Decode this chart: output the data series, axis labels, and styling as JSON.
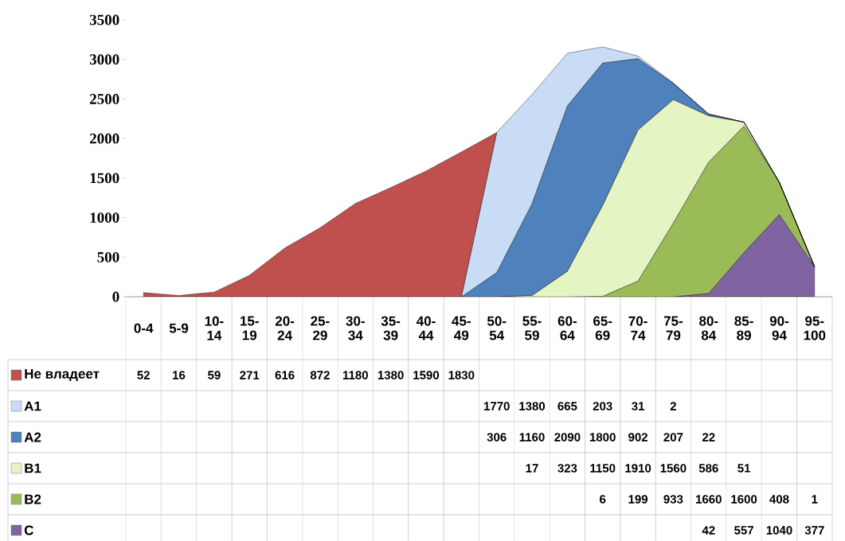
{
  "chart_data": {
    "type": "area",
    "stacked": true,
    "legend": "bottom",
    "categories": [
      "0-4",
      "5-9",
      "10-14",
      "15-19",
      "20-24",
      "25-29",
      "30-34",
      "35-39",
      "40-44",
      "45-49",
      "50-54",
      "55-59",
      "60-64",
      "65-69",
      "70-74",
      "75-79",
      "80-84",
      "85-89",
      "90-94",
      "95-100"
    ],
    "ylim": [
      0,
      3500
    ],
    "yticks": [
      0,
      500,
      1000,
      1500,
      2000,
      2500,
      3000,
      3500
    ],
    "series": [
      {
        "name": "C",
        "color": "#8064a2",
        "values": [
          0,
          0,
          0,
          0,
          0,
          0,
          0,
          0,
          0,
          0,
          0,
          0,
          0,
          0,
          0,
          0,
          42,
          557,
          1040,
          377
        ],
        "value_labels": [
          null,
          null,
          null,
          null,
          null,
          null,
          null,
          null,
          null,
          null,
          null,
          null,
          null,
          null,
          null,
          null,
          "42",
          "557",
          "1040",
          "377"
        ]
      },
      {
        "name": "B2",
        "color": "#9bbb59",
        "values": [
          0,
          0,
          0,
          0,
          0,
          0,
          0,
          0,
          0,
          0,
          0,
          0,
          0,
          6,
          199,
          933,
          1660,
          1600,
          408,
          1
        ],
        "value_labels": [
          null,
          null,
          null,
          null,
          null,
          null,
          null,
          null,
          null,
          null,
          null,
          null,
          null,
          "6",
          "199",
          "933",
          "1660",
          "1600",
          "408",
          "1"
        ]
      },
      {
        "name": "B1",
        "color": "#e4f4c2",
        "values": [
          0,
          0,
          0,
          0,
          0,
          0,
          0,
          0,
          0,
          0,
          0,
          17,
          323,
          1150,
          1910,
          1560,
          586,
          51,
          0,
          0
        ],
        "value_labels": [
          null,
          null,
          null,
          null,
          null,
          null,
          null,
          null,
          null,
          null,
          null,
          "17",
          "323",
          "1150",
          "1910",
          "1560",
          "586",
          "51",
          null,
          null
        ]
      },
      {
        "name": "A2",
        "color": "#4f81bd",
        "values": [
          0,
          0,
          0,
          0,
          0,
          0,
          0,
          0,
          0,
          0,
          306,
          1160,
          2090,
          1800,
          902,
          207,
          22,
          0,
          0,
          0
        ],
        "value_labels": [
          null,
          null,
          null,
          null,
          null,
          null,
          null,
          null,
          null,
          null,
          "306",
          "1160",
          "2090",
          "1800",
          "902",
          "207",
          "22",
          null,
          null,
          null
        ]
      },
      {
        "name": "A1",
        "color": "#c9dcf5",
        "values": [
          0,
          0,
          0,
          0,
          0,
          0,
          0,
          0,
          0,
          0,
          1770,
          1380,
          665,
          203,
          31,
          2,
          0,
          0,
          0,
          0
        ],
        "value_labels": [
          null,
          null,
          null,
          null,
          null,
          null,
          null,
          null,
          null,
          null,
          "1770",
          "1380",
          "665",
          "203",
          "31",
          "2",
          null,
          null,
          null,
          null
        ]
      },
      {
        "name": "Не владеет",
        "color": "#c0504d",
        "values": [
          52,
          16,
          59,
          271,
          616,
          872,
          1180,
          1380,
          1590,
          1830,
          0,
          null,
          null,
          null,
          null,
          null,
          null,
          null,
          null,
          null
        ],
        "value_labels": [
          "52",
          "16",
          "59",
          "271",
          "616",
          "872",
          "1180",
          "1380",
          "1590",
          "1830",
          null,
          null,
          null,
          null,
          null,
          null,
          null,
          null,
          null,
          null
        ]
      }
    ]
  }
}
